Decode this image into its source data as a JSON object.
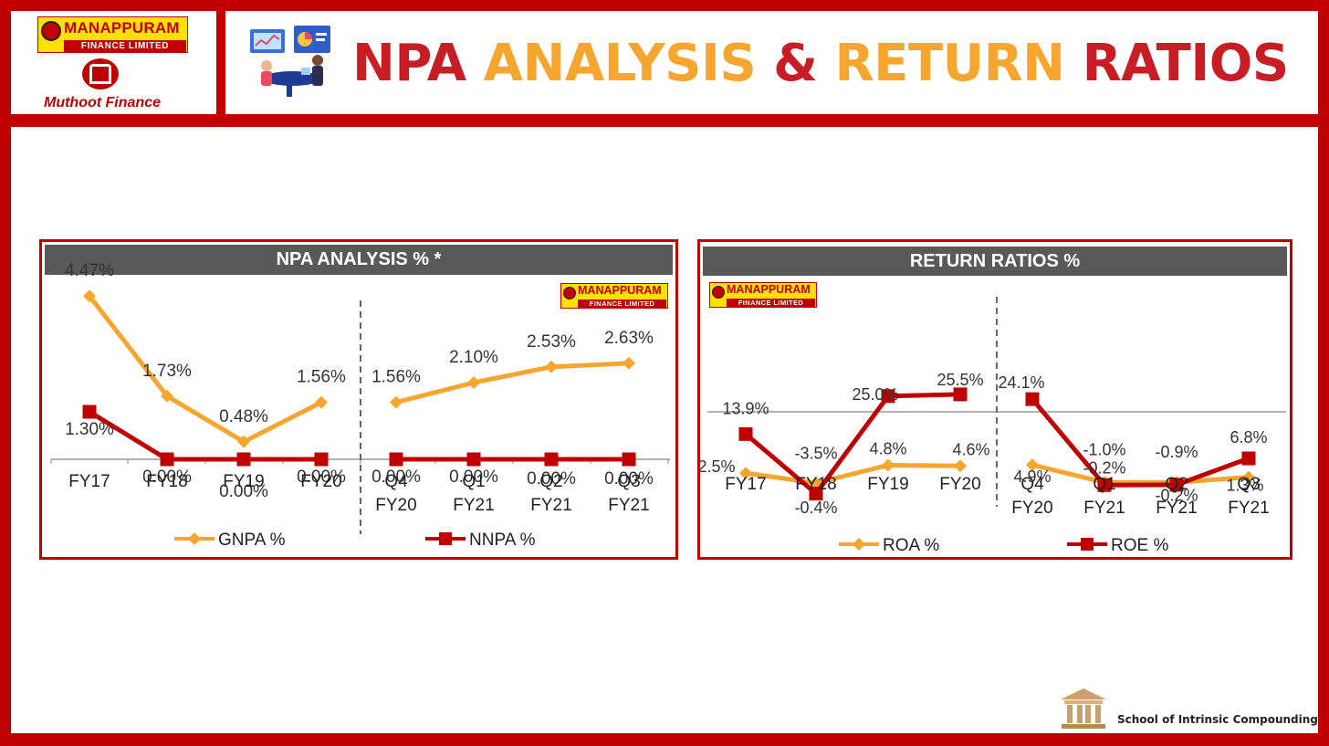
{
  "header": {
    "title_parts": [
      "NPA",
      "ANALYSIS",
      "&",
      "RETURN",
      "RATIOS"
    ],
    "logos": {
      "manappuram_name": "MANAPPURAM",
      "manappuram_sub": "FINANCE LIMITED",
      "muthoot_name": "Muthoot Finance"
    }
  },
  "colors": {
    "red": "#c00000",
    "gold": "#f6a52e",
    "header_grey": "#595959"
  },
  "chart_data": [
    {
      "type": "line",
      "title": "NPA ANALYSIS % *",
      "categories": [
        [
          "FY17"
        ],
        [
          "FY18"
        ],
        [
          "FY19"
        ],
        [
          "FY20"
        ],
        [
          "Q4",
          "FY20"
        ],
        [
          "Q1",
          "FY21"
        ],
        [
          "Q2",
          "FY21"
        ],
        [
          "Q3",
          "FY21"
        ]
      ],
      "series": [
        {
          "name": "GNPA %",
          "color": "#f6a52e",
          "marker": "diamond",
          "values": [
            4.47,
            1.73,
            0.48,
            1.56,
            1.56,
            2.1,
            2.53,
            2.63
          ],
          "labels": [
            "4.47%",
            "1.73%",
            "0.48%",
            "1.56%",
            "1.56%",
            "2.10%",
            "2.53%",
            "2.63%"
          ]
        },
        {
          "name": "NNPA %",
          "color": "#c00000",
          "marker": "square",
          "values": [
            1.3,
            0.0,
            0.0,
            0.0,
            0.0,
            0.0,
            0.0,
            0.0
          ],
          "labels": [
            "1.30%",
            "0.00%",
            "0.00%",
            "0.00%",
            "0.00%",
            "0.00%",
            "0.00%",
            "0.00%"
          ]
        }
      ],
      "segments": [
        [
          0,
          3
        ],
        [
          4,
          7
        ]
      ],
      "ylim": [
        -1,
        5
      ],
      "legend": "bottom",
      "divider_after_index": 3
    },
    {
      "type": "line",
      "title": "RETURN RATIOS %",
      "categories": [
        [
          "FY17"
        ],
        [
          "FY18"
        ],
        [
          "FY19"
        ],
        [
          "FY20"
        ],
        [
          "Q4",
          "FY20"
        ],
        [
          "Q1",
          "FY21"
        ],
        [
          "Q2",
          "FY21"
        ],
        [
          "Q3",
          "FY21"
        ]
      ],
      "series": [
        {
          "name": "ROA %",
          "color": "#f6a52e",
          "marker": "diamond",
          "values": [
            2.5,
            -0.4,
            4.8,
            4.6,
            4.9,
            -0.2,
            -0.2,
            1.3
          ],
          "labels": [
            "2.5%",
            "-0.4%",
            "4.8%",
            "4.6%",
            "4.9%",
            "-0.2%",
            "-0.2%",
            "1.3%"
          ]
        },
        {
          "name": "ROE %",
          "color": "#c00000",
          "marker": "square",
          "values": [
            13.9,
            -3.5,
            25.0,
            25.5,
            24.1,
            -1.0,
            -0.9,
            6.8
          ],
          "labels": [
            "13.9%",
            "-3.5%",
            "25.0%",
            "25.5%",
            "24.1%",
            "-1.0%",
            "-0.9%",
            "6.8%"
          ]
        }
      ],
      "segments": [
        [
          0,
          3
        ],
        [
          4,
          7
        ]
      ],
      "ylim": [
        -10,
        50
      ],
      "legend": "bottom",
      "divider_after_index": 3
    }
  ],
  "footer": {
    "text": "School of Intrinsic Compounding"
  }
}
